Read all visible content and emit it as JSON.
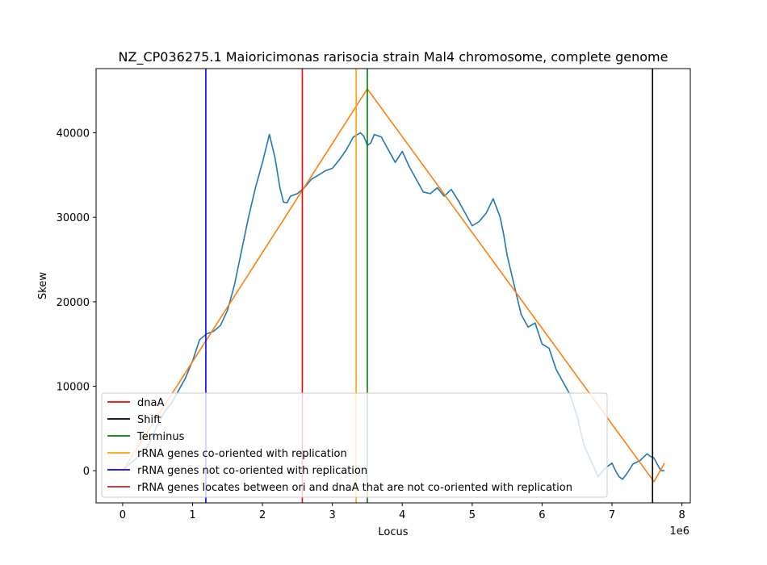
{
  "chart_data": {
    "type": "line",
    "title": "NZ_CP036275.1 Maioricimonas rarisocia strain Mal4 chromosome, complete genome",
    "xlabel": "Locus",
    "ylabel": "Skew",
    "x_offset_label": "1e6",
    "xlim": [
      -0.38,
      8.12
    ],
    "ylim": [
      -3800,
      47600
    ],
    "xticks": [
      0,
      1,
      2,
      3,
      4,
      5,
      6,
      7,
      8
    ],
    "yticks": [
      0,
      10000,
      20000,
      30000,
      40000
    ],
    "x_tick_labels": [
      "0",
      "1",
      "2",
      "3",
      "4",
      "5",
      "6",
      "7",
      "8"
    ],
    "y_tick_labels": [
      "0",
      "10000",
      "20000",
      "30000",
      "40000"
    ],
    "grid": false,
    "legend_position": "lower-left",
    "series": [
      {
        "color": "#1f77b4",
        "x": [
          0,
          0.1,
          0.2,
          0.3,
          0.4,
          0.5,
          0.6,
          0.7,
          0.8,
          0.9,
          1.0,
          1.1,
          1.2,
          1.3,
          1.4,
          1.5,
          1.6,
          1.7,
          1.8,
          1.9,
          2.0,
          2.1,
          2.18,
          2.25,
          2.3,
          2.35,
          2.4,
          2.5,
          2.6,
          2.7,
          2.8,
          2.9,
          3.0,
          3.1,
          3.2,
          3.3,
          3.4,
          3.45,
          3.5,
          3.55,
          3.6,
          3.7,
          3.8,
          3.9,
          4.0,
          4.1,
          4.2,
          4.3,
          4.4,
          4.5,
          4.6,
          4.7,
          4.8,
          4.9,
          5.0,
          5.1,
          5.2,
          5.3,
          5.4,
          5.45,
          5.5,
          5.6,
          5.7,
          5.8,
          5.9,
          6.0,
          6.1,
          6.2,
          6.3,
          6.4,
          6.5,
          6.6,
          6.7,
          6.8,
          6.9,
          7.0,
          7.05,
          7.1,
          7.15,
          7.2,
          7.3,
          7.4,
          7.5,
          7.55,
          7.6,
          7.7,
          7.75
        ],
        "y": [
          0,
          800,
          1500,
          2200,
          3500,
          5500,
          7000,
          8000,
          9500,
          11000,
          13000,
          15500,
          16200,
          16500,
          17200,
          19000,
          22000,
          26000,
          30000,
          33500,
          36500,
          39800,
          37000,
          33500,
          31800,
          31700,
          32500,
          32800,
          33500,
          34500,
          35000,
          35500,
          35800,
          36800,
          38000,
          39500,
          40000,
          39600,
          38500,
          38800,
          39800,
          39500,
          38000,
          36500,
          37800,
          36000,
          34500,
          33000,
          32800,
          33500,
          32500,
          33300,
          32000,
          30500,
          29000,
          29500,
          30500,
          32200,
          30000,
          28000,
          25500,
          22000,
          18500,
          17000,
          17500,
          15000,
          14500,
          12000,
          10500,
          9000,
          6500,
          3000,
          1200,
          -700,
          300,
          900,
          0,
          -700,
          -1000,
          -500,
          800,
          1200,
          2000,
          1700,
          1500,
          0,
          0
        ]
      },
      {
        "color": "#ff7f0e",
        "x": [
          0,
          3.5,
          7.6,
          7.75
        ],
        "y": [
          0,
          45200,
          -1300,
          900
        ]
      }
    ],
    "vlines": [
      {
        "x": 1.19,
        "color": "#0000ff"
      },
      {
        "x": 2.57,
        "color": "#ff0000"
      },
      {
        "x": 3.34,
        "color": "#ffa500"
      },
      {
        "x": 3.5,
        "color": "#008000"
      },
      {
        "x": 7.58,
        "color": "#000000"
      }
    ],
    "legend": [
      {
        "label": "dnaA",
        "color": "#ff0000"
      },
      {
        "label": "Shift",
        "color": "#000000"
      },
      {
        "label": "Terminus",
        "color": "#008000"
      },
      {
        "label": "rRNA genes co-oriented with replication",
        "color": "#ffa500"
      },
      {
        "label": "rRNA genes not co-oriented with replication",
        "color": "#0000ff"
      },
      {
        "label": "rRNA genes locates between ori and dnaA that are not co-oriented with replication",
        "color": "#b22222"
      }
    ]
  }
}
